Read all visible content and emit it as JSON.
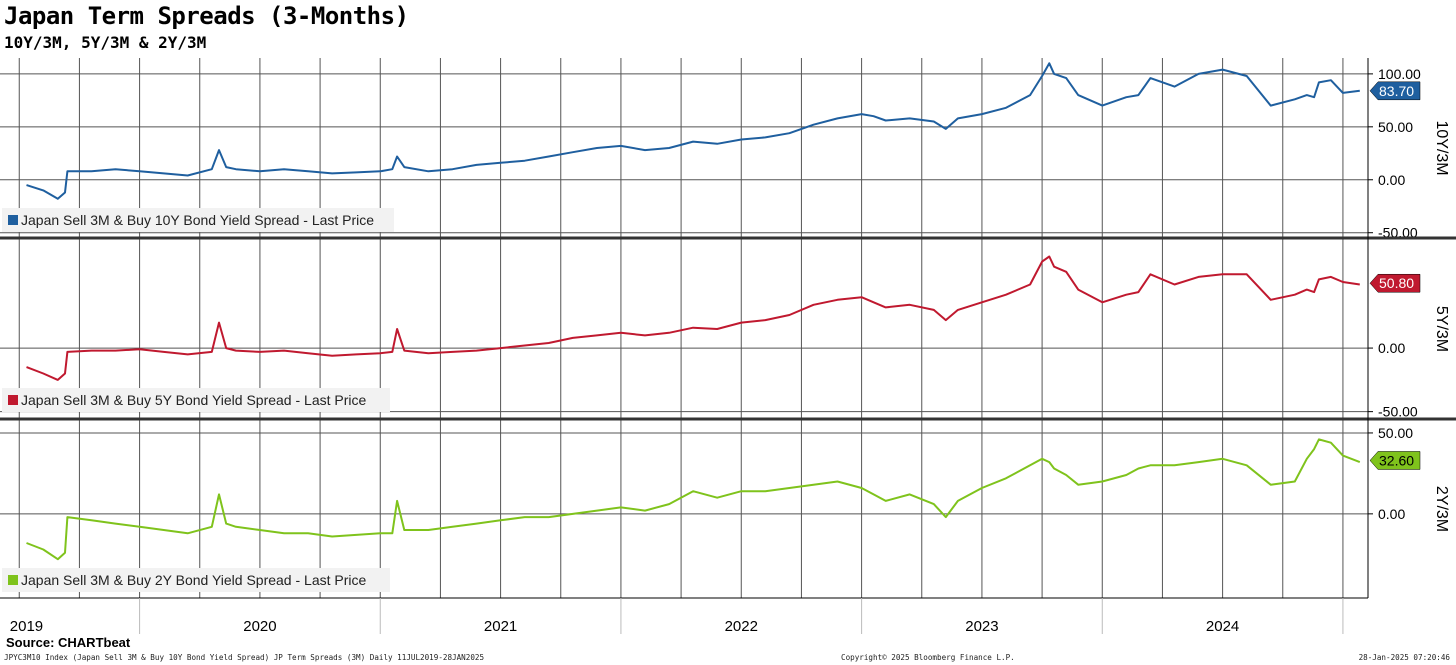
{
  "title": "Japan Term Spreads (3-Months)",
  "subtitle": "10Y/3M, 5Y/3M & 2Y/3M",
  "source": "Source: CHARTbeat",
  "footer": {
    "left": "JPYC3M10 Index (Japan Sell 3M & Buy 10Y Bond Yield Spread) JP Term Spreads (3M)  Daily 11JUL2019-28JAN2025",
    "center": "Copyright© 2025 Bloomberg Finance L.P.",
    "right": "28-Jan-2025 07:20:46"
  },
  "chart_data": [
    {
      "type": "line",
      "ylabel": "10Y/3M",
      "legend": "Japan Sell 3M & Buy 10Y Bond Yield Spread - Last Price",
      "legend_position": "bottom-left",
      "color": "#1f5f9f",
      "last_value": "83.70",
      "ylim": [
        -55,
        115
      ],
      "yticks": [
        "100.00",
        "50.00",
        "0.00",
        "-50.00"
      ],
      "ytick_values": [
        100,
        50,
        0,
        -50
      ],
      "grid": true,
      "x": [
        2019.53,
        2019.6,
        2019.66,
        2019.69,
        2019.7,
        2019.8,
        2019.9,
        2020.0,
        2020.1,
        2020.2,
        2020.3,
        2020.33,
        2020.36,
        2020.4,
        2020.5,
        2020.6,
        2020.7,
        2020.8,
        2020.9,
        2021.0,
        2021.05,
        2021.07,
        2021.1,
        2021.2,
        2021.3,
        2021.4,
        2021.5,
        2021.6,
        2021.7,
        2021.8,
        2021.9,
        2022.0,
        2022.1,
        2022.2,
        2022.3,
        2022.4,
        2022.5,
        2022.6,
        2022.7,
        2022.8,
        2022.9,
        2023.0,
        2023.05,
        2023.1,
        2023.2,
        2023.3,
        2023.35,
        2023.4,
        2023.5,
        2023.6,
        2023.7,
        2023.75,
        2023.78,
        2023.8,
        2023.85,
        2023.9,
        2024.0,
        2024.1,
        2024.15,
        2024.2,
        2024.3,
        2024.4,
        2024.5,
        2024.6,
        2024.7,
        2024.8,
        2024.85,
        2024.88,
        2024.9,
        2024.95,
        2025.0,
        2025.07
      ],
      "values": [
        -5,
        -10,
        -18,
        -12,
        8,
        8,
        10,
        8,
        6,
        4,
        10,
        28,
        12,
        10,
        8,
        10,
        8,
        6,
        7,
        8,
        10,
        22,
        12,
        8,
        10,
        14,
        16,
        18,
        22,
        26,
        30,
        32,
        28,
        30,
        36,
        34,
        38,
        40,
        44,
        52,
        58,
        62,
        60,
        56,
        58,
        55,
        48,
        58,
        62,
        68,
        80,
        98,
        110,
        100,
        96,
        80,
        70,
        78,
        80,
        96,
        88,
        100,
        104,
        98,
        70,
        76,
        80,
        78,
        92,
        94,
        82,
        84
      ],
      "tail_x": [
        2024.98,
        2025.01,
        2025.03,
        2025.05,
        2025.07
      ],
      "tail_values": [
        90,
        95,
        80,
        82,
        84
      ]
    },
    {
      "type": "line",
      "ylabel": "5Y/3M",
      "legend": "Japan Sell 3M & Buy 5Y Bond Yield Spread - Last Price",
      "legend_position": "bottom-left",
      "color": "#c0192f",
      "last_value": "50.80",
      "ylim": [
        -55,
        85
      ],
      "yticks": [
        "0.00",
        "-50.00"
      ],
      "ytick_values": [
        0,
        -50
      ],
      "grid": true,
      "x": [
        2019.53,
        2019.6,
        2019.66,
        2019.69,
        2019.7,
        2019.8,
        2019.9,
        2020.0,
        2020.1,
        2020.2,
        2020.3,
        2020.33,
        2020.36,
        2020.4,
        2020.5,
        2020.6,
        2020.7,
        2020.8,
        2020.9,
        2021.0,
        2021.05,
        2021.07,
        2021.1,
        2021.2,
        2021.3,
        2021.4,
        2021.5,
        2021.6,
        2021.7,
        2021.8,
        2021.9,
        2022.0,
        2022.1,
        2022.2,
        2022.3,
        2022.4,
        2022.5,
        2022.6,
        2022.7,
        2022.8,
        2022.9,
        2023.0,
        2023.05,
        2023.1,
        2023.2,
        2023.3,
        2023.35,
        2023.4,
        2023.5,
        2023.6,
        2023.7,
        2023.75,
        2023.78,
        2023.8,
        2023.85,
        2023.9,
        2024.0,
        2024.1,
        2024.15,
        2024.2,
        2024.3,
        2024.4,
        2024.5,
        2024.6,
        2024.7,
        2024.8,
        2024.85,
        2024.88,
        2024.9,
        2024.95,
        2025.0,
        2025.07
      ],
      "values": [
        -15,
        -20,
        -25,
        -20,
        -3,
        -2,
        -2,
        -1,
        -3,
        -5,
        -3,
        20,
        0,
        -2,
        -3,
        -2,
        -4,
        -6,
        -5,
        -4,
        -3,
        15,
        -2,
        -4,
        -3,
        -2,
        0,
        2,
        4,
        8,
        10,
        12,
        10,
        12,
        16,
        15,
        20,
        22,
        26,
        34,
        38,
        40,
        36,
        32,
        34,
        30,
        22,
        30,
        36,
        42,
        50,
        68,
        72,
        64,
        60,
        46,
        36,
        42,
        44,
        58,
        50,
        56,
        58,
        58,
        38,
        42,
        46,
        44,
        54,
        56,
        52,
        50
      ],
      "tail_x": [
        2024.98,
        2025.01,
        2025.03,
        2025.05,
        2025.07
      ],
      "tail_values": [
        56,
        62,
        48,
        50,
        51
      ]
    },
    {
      "type": "line",
      "ylabel": "2Y/3M",
      "legend": "Japan Sell 3M & Buy 2Y Bond Yield Spread - Last Price",
      "legend_position": "bottom-left",
      "color": "#7fc31c",
      "last_value": "32.60",
      "ylim": [
        -52,
        58
      ],
      "yticks": [
        "50.00",
        "0.00"
      ],
      "ytick_values": [
        50,
        0
      ],
      "grid": true,
      "x": [
        2019.53,
        2019.6,
        2019.66,
        2019.69,
        2019.7,
        2019.8,
        2019.9,
        2020.0,
        2020.1,
        2020.2,
        2020.3,
        2020.33,
        2020.36,
        2020.4,
        2020.5,
        2020.6,
        2020.7,
        2020.8,
        2020.9,
        2021.0,
        2021.05,
        2021.07,
        2021.1,
        2021.2,
        2021.3,
        2021.4,
        2021.5,
        2021.6,
        2021.7,
        2021.8,
        2021.9,
        2022.0,
        2022.1,
        2022.2,
        2022.3,
        2022.4,
        2022.5,
        2022.6,
        2022.7,
        2022.8,
        2022.9,
        2023.0,
        2023.05,
        2023.1,
        2023.2,
        2023.3,
        2023.35,
        2023.4,
        2023.5,
        2023.6,
        2023.7,
        2023.75,
        2023.78,
        2023.8,
        2023.85,
        2023.9,
        2024.0,
        2024.1,
        2024.15,
        2024.2,
        2024.3,
        2024.4,
        2024.5,
        2024.6,
        2024.7,
        2024.8,
        2024.85,
        2024.88,
        2024.9,
        2024.95,
        2025.0,
        2025.07
      ],
      "values": [
        -18,
        -22,
        -28,
        -24,
        -2,
        -4,
        -6,
        -8,
        -10,
        -12,
        -8,
        12,
        -6,
        -8,
        -10,
        -12,
        -12,
        -14,
        -13,
        -12,
        -12,
        8,
        -10,
        -10,
        -8,
        -6,
        -4,
        -2,
        -2,
        0,
        2,
        4,
        2,
        6,
        14,
        10,
        14,
        14,
        16,
        18,
        20,
        16,
        12,
        8,
        12,
        6,
        -2,
        8,
        16,
        22,
        30,
        34,
        32,
        28,
        24,
        18,
        20,
        24,
        28,
        30,
        30,
        32,
        34,
        30,
        18,
        20,
        34,
        40,
        46,
        44,
        36,
        32
      ],
      "tail_x": [
        2024.98,
        2025.01,
        2025.03,
        2025.05,
        2025.07
      ],
      "tail_values": [
        40,
        44,
        26,
        30,
        33
      ]
    }
  ],
  "x_axis": {
    "year_labels": [
      "2019",
      "2020",
      "2021",
      "2022",
      "2023",
      "2024"
    ],
    "year_label_x": [
      2019.53,
      2020.5,
      2021.5,
      2022.5,
      2023.5,
      2024.5
    ],
    "year_boundaries": [
      2020.0,
      2021.0,
      2022.0,
      2023.0,
      2024.0,
      2025.0
    ],
    "quarter_grid": [
      2019.5,
      2019.75,
      2020.0,
      2020.25,
      2020.5,
      2020.75,
      2021.0,
      2021.25,
      2021.5,
      2021.75,
      2022.0,
      2022.25,
      2022.5,
      2022.75,
      2023.0,
      2023.25,
      2023.5,
      2023.75,
      2024.0,
      2024.25,
      2024.5,
      2024.75,
      2025.0
    ],
    "range": [
      2019.42,
      2025.1
    ]
  }
}
